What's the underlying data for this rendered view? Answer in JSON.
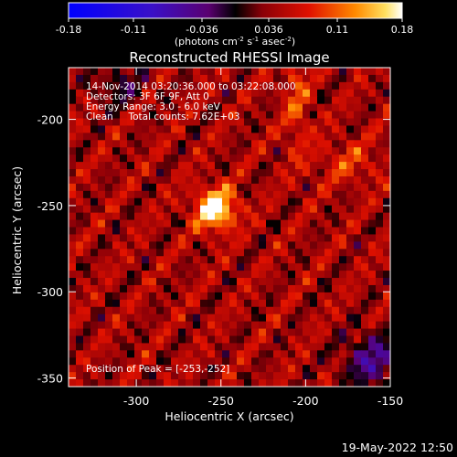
{
  "colorbar": {
    "ticks": [
      "-0.18",
      "-0.11",
      "-0.036",
      "0.036",
      "0.11",
      "0.18"
    ],
    "range": [
      -0.18,
      0.18
    ],
    "units_main": "(photons cm",
    "units_exp1": "-2",
    "units_mid": " s",
    "units_exp2": "-1",
    "units_mid2": " asec",
    "units_exp3": "-2",
    "units_close": ")"
  },
  "chart_data": {
    "type": "heatmap",
    "title": "Reconstructed RHESSI Image",
    "xlabel": "Heliocentric X (arcsec)",
    "ylabel": "Heliocentric Y (arcsec)",
    "xlim": [
      -340,
      -150
    ],
    "ylim": [
      -355,
      -170
    ],
    "x_ticks": [
      "-300",
      "-250",
      "-200",
      "-150"
    ],
    "x_tick_values": [
      -300,
      -250,
      -200,
      -150
    ],
    "y_ticks": [
      "-200",
      "-250",
      "-300",
      "-350"
    ],
    "y_tick_values": [
      -200,
      -250,
      -300,
      -350
    ],
    "annotations": [
      "14-Nov-2014 03:20:36.000 to 03:22:08.000",
      "Detectors: 3F 6F 9F, Att 0",
      "Energy Range: 3.0 - 6.0 keV",
      "Clean     Total counts: 7.62E+03"
    ],
    "peak_label": "Position of Peak = [-253,-252]",
    "peak": [
      -253,
      -252
    ]
  },
  "footer": {
    "timestamp": "19-May-2022 12:50"
  }
}
